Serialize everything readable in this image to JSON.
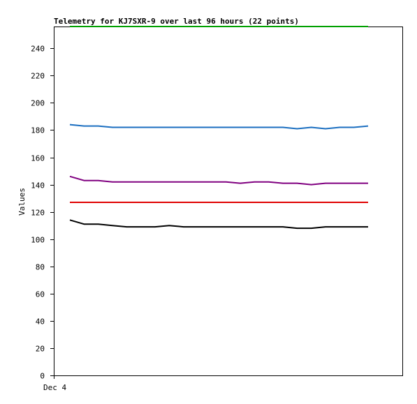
{
  "chart_data": {
    "type": "line",
    "title": "Telemetry for KJ7SXR-9 over last 96 hours (22 points)",
    "xlabel": "",
    "ylabel": "Values",
    "ylim": [
      0,
      256
    ],
    "yticks": [
      0,
      20,
      40,
      60,
      80,
      100,
      120,
      140,
      160,
      180,
      200,
      220,
      240
    ],
    "xticks": [
      {
        "x": 0,
        "label": "Dec 4"
      }
    ],
    "x": [
      0,
      1,
      2,
      3,
      4,
      5,
      6,
      7,
      8,
      9,
      10,
      11,
      12,
      13,
      14,
      15,
      16,
      17,
      18,
      19,
      20,
      21
    ],
    "grid": false,
    "series": [
      {
        "color": "#00a000",
        "values": [
          256,
          256,
          256,
          256,
          256,
          256,
          256,
          256,
          256,
          256,
          256,
          256,
          256,
          256,
          256,
          256,
          256,
          256,
          256,
          256,
          256,
          256
        ]
      },
      {
        "color": "#1a6ec0",
        "values": [
          184,
          183,
          183,
          182,
          182,
          182,
          182,
          182,
          182,
          182,
          182,
          182,
          182,
          182,
          182,
          182,
          181,
          182,
          181,
          182,
          182,
          183
        ]
      },
      {
        "color": "#800080",
        "values": [
          146,
          143,
          143,
          142,
          142,
          142,
          142,
          142,
          142,
          142,
          142,
          142,
          141,
          142,
          142,
          141,
          141,
          140,
          141,
          141,
          141,
          141
        ]
      },
      {
        "color": "#e00000",
        "values": [
          127,
          127,
          127,
          127,
          127,
          127,
          127,
          127,
          127,
          127,
          127,
          127,
          127,
          127,
          127,
          127,
          127,
          127,
          127,
          127,
          127,
          127
        ]
      },
      {
        "color": "#000000",
        "values": [
          114,
          111,
          111,
          110,
          109,
          109,
          109,
          110,
          109,
          109,
          109,
          109,
          109,
          109,
          109,
          109,
          108,
          108,
          109,
          109,
          109,
          109
        ]
      }
    ]
  }
}
